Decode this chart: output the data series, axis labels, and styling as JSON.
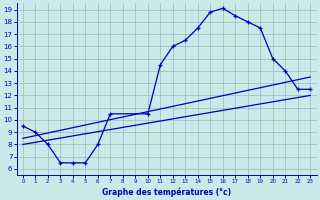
{
  "line1_x": [
    0,
    1,
    2,
    3,
    4,
    5,
    6,
    7,
    10,
    11,
    12,
    13,
    14,
    15,
    16,
    17,
    18,
    19,
    20,
    21,
    22,
    23
  ],
  "line1_y": [
    9.5,
    9.0,
    8.0,
    6.5,
    6.5,
    6.5,
    8.0,
    10.5,
    10.5,
    14.5,
    16.0,
    16.5,
    17.5,
    18.8,
    19.1,
    18.5,
    18.0,
    17.5,
    15.0,
    14.0,
    12.5,
    12.5
  ],
  "line2_x": [
    0,
    23
  ],
  "line2_y": [
    8.5,
    13.5
  ],
  "line3_x": [
    0,
    23
  ],
  "line3_y": [
    8.0,
    12.0
  ],
  "line_color": "#0000bb",
  "bg_color": "#cce8e8",
  "grid_color": "#99bbbb",
  "xlabel": "Graphe des températures (°c)",
  "xlim": [
    -0.5,
    23.5
  ],
  "ylim": [
    5.5,
    19.5
  ],
  "xticks": [
    0,
    1,
    2,
    3,
    4,
    5,
    6,
    7,
    8,
    9,
    10,
    11,
    12,
    13,
    14,
    15,
    16,
    17,
    18,
    19,
    20,
    21,
    22,
    23
  ],
  "yticks": [
    6,
    7,
    8,
    9,
    10,
    11,
    12,
    13,
    14,
    15,
    16,
    17,
    18,
    19
  ]
}
